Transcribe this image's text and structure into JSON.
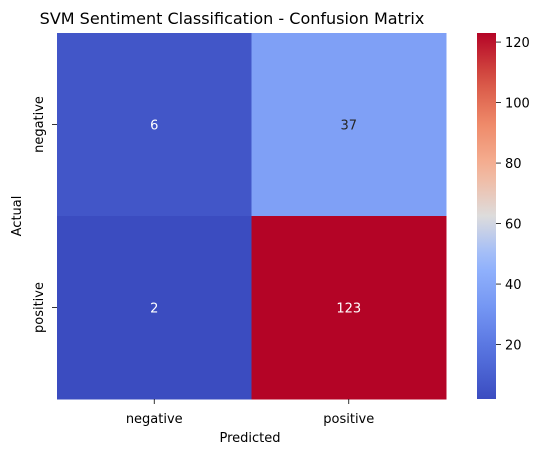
{
  "chart_data": {
    "type": "heatmap",
    "title": "SVM Sentiment Classification - Confusion Matrix",
    "xlabel": "Predicted",
    "ylabel": "Actual",
    "x_categories": [
      "negative",
      "positive"
    ],
    "y_categories": [
      "negative",
      "positive"
    ],
    "values": [
      [
        6,
        37
      ],
      [
        2,
        123
      ]
    ],
    "annotations": true,
    "colormap": "coolwarm",
    "colorbar": {
      "min": 2,
      "max": 123,
      "ticks": [
        20,
        40,
        60,
        80,
        100,
        120
      ]
    },
    "grid": false,
    "legend": "colorbar-right"
  },
  "colors": {
    "background": "#ffffff",
    "text": "#000000",
    "annotation_light": "#ffffff",
    "annotation_dark": "#262626"
  }
}
